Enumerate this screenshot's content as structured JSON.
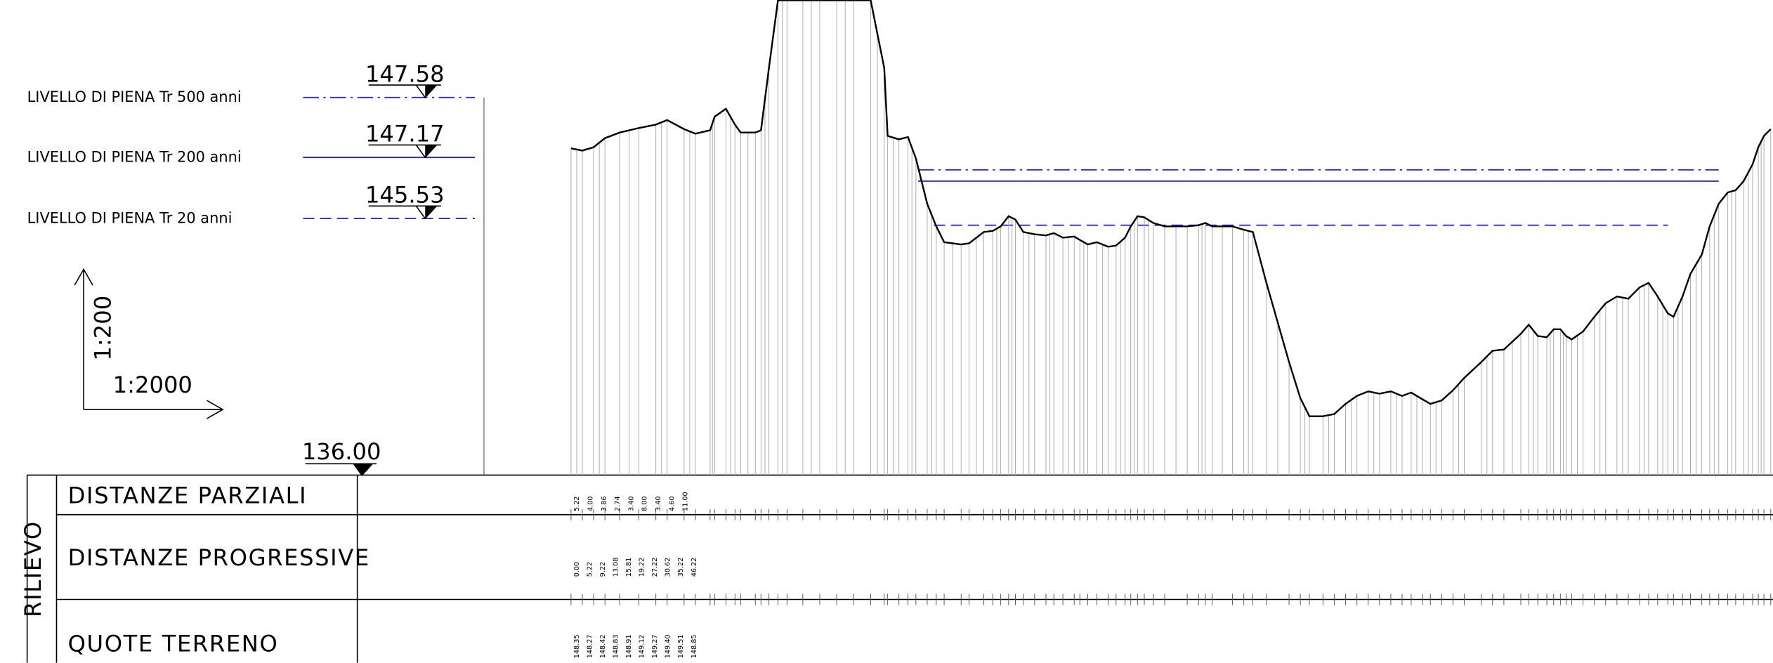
{
  "levels": [
    {
      "label": "LIVELLO DI PIENA Tr 500 anni",
      "elevation": "147.58"
    },
    {
      "label": "LIVELLO DI PIENA Tr 200 anni",
      "elevation": "147.17"
    },
    {
      "label": "LIVELLO DI PIENA Tr 20 anni",
      "elevation": "145.53"
    }
  ],
  "scale": {
    "vertical": "1:200",
    "horizontal": "1:2000"
  },
  "datum": "136.00",
  "table": {
    "group": "RILIEVO",
    "rows": [
      {
        "label": "DISTANZE PARZIALI",
        "values": [
          "5.22",
          "4.00",
          "3.86",
          "2.74",
          "3.40",
          "8.00",
          "3.40",
          "4.60",
          "11.00"
        ]
      },
      {
        "label": "DISTANZE PROGRESSIVE",
        "values": [
          "0.00",
          "5.22",
          "9.22",
          "13.08",
          "15.81",
          "19.22",
          "27.22",
          "30.62",
          "35.22",
          "46.22"
        ]
      },
      {
        "label": "QUOTE TERRENO",
        "values": [
          "148.35",
          "148.27",
          "148.42",
          "148.83",
          "148.91",
          "149.12",
          "149.27",
          "149.40",
          "149.51",
          "148.85"
        ]
      }
    ]
  }
}
